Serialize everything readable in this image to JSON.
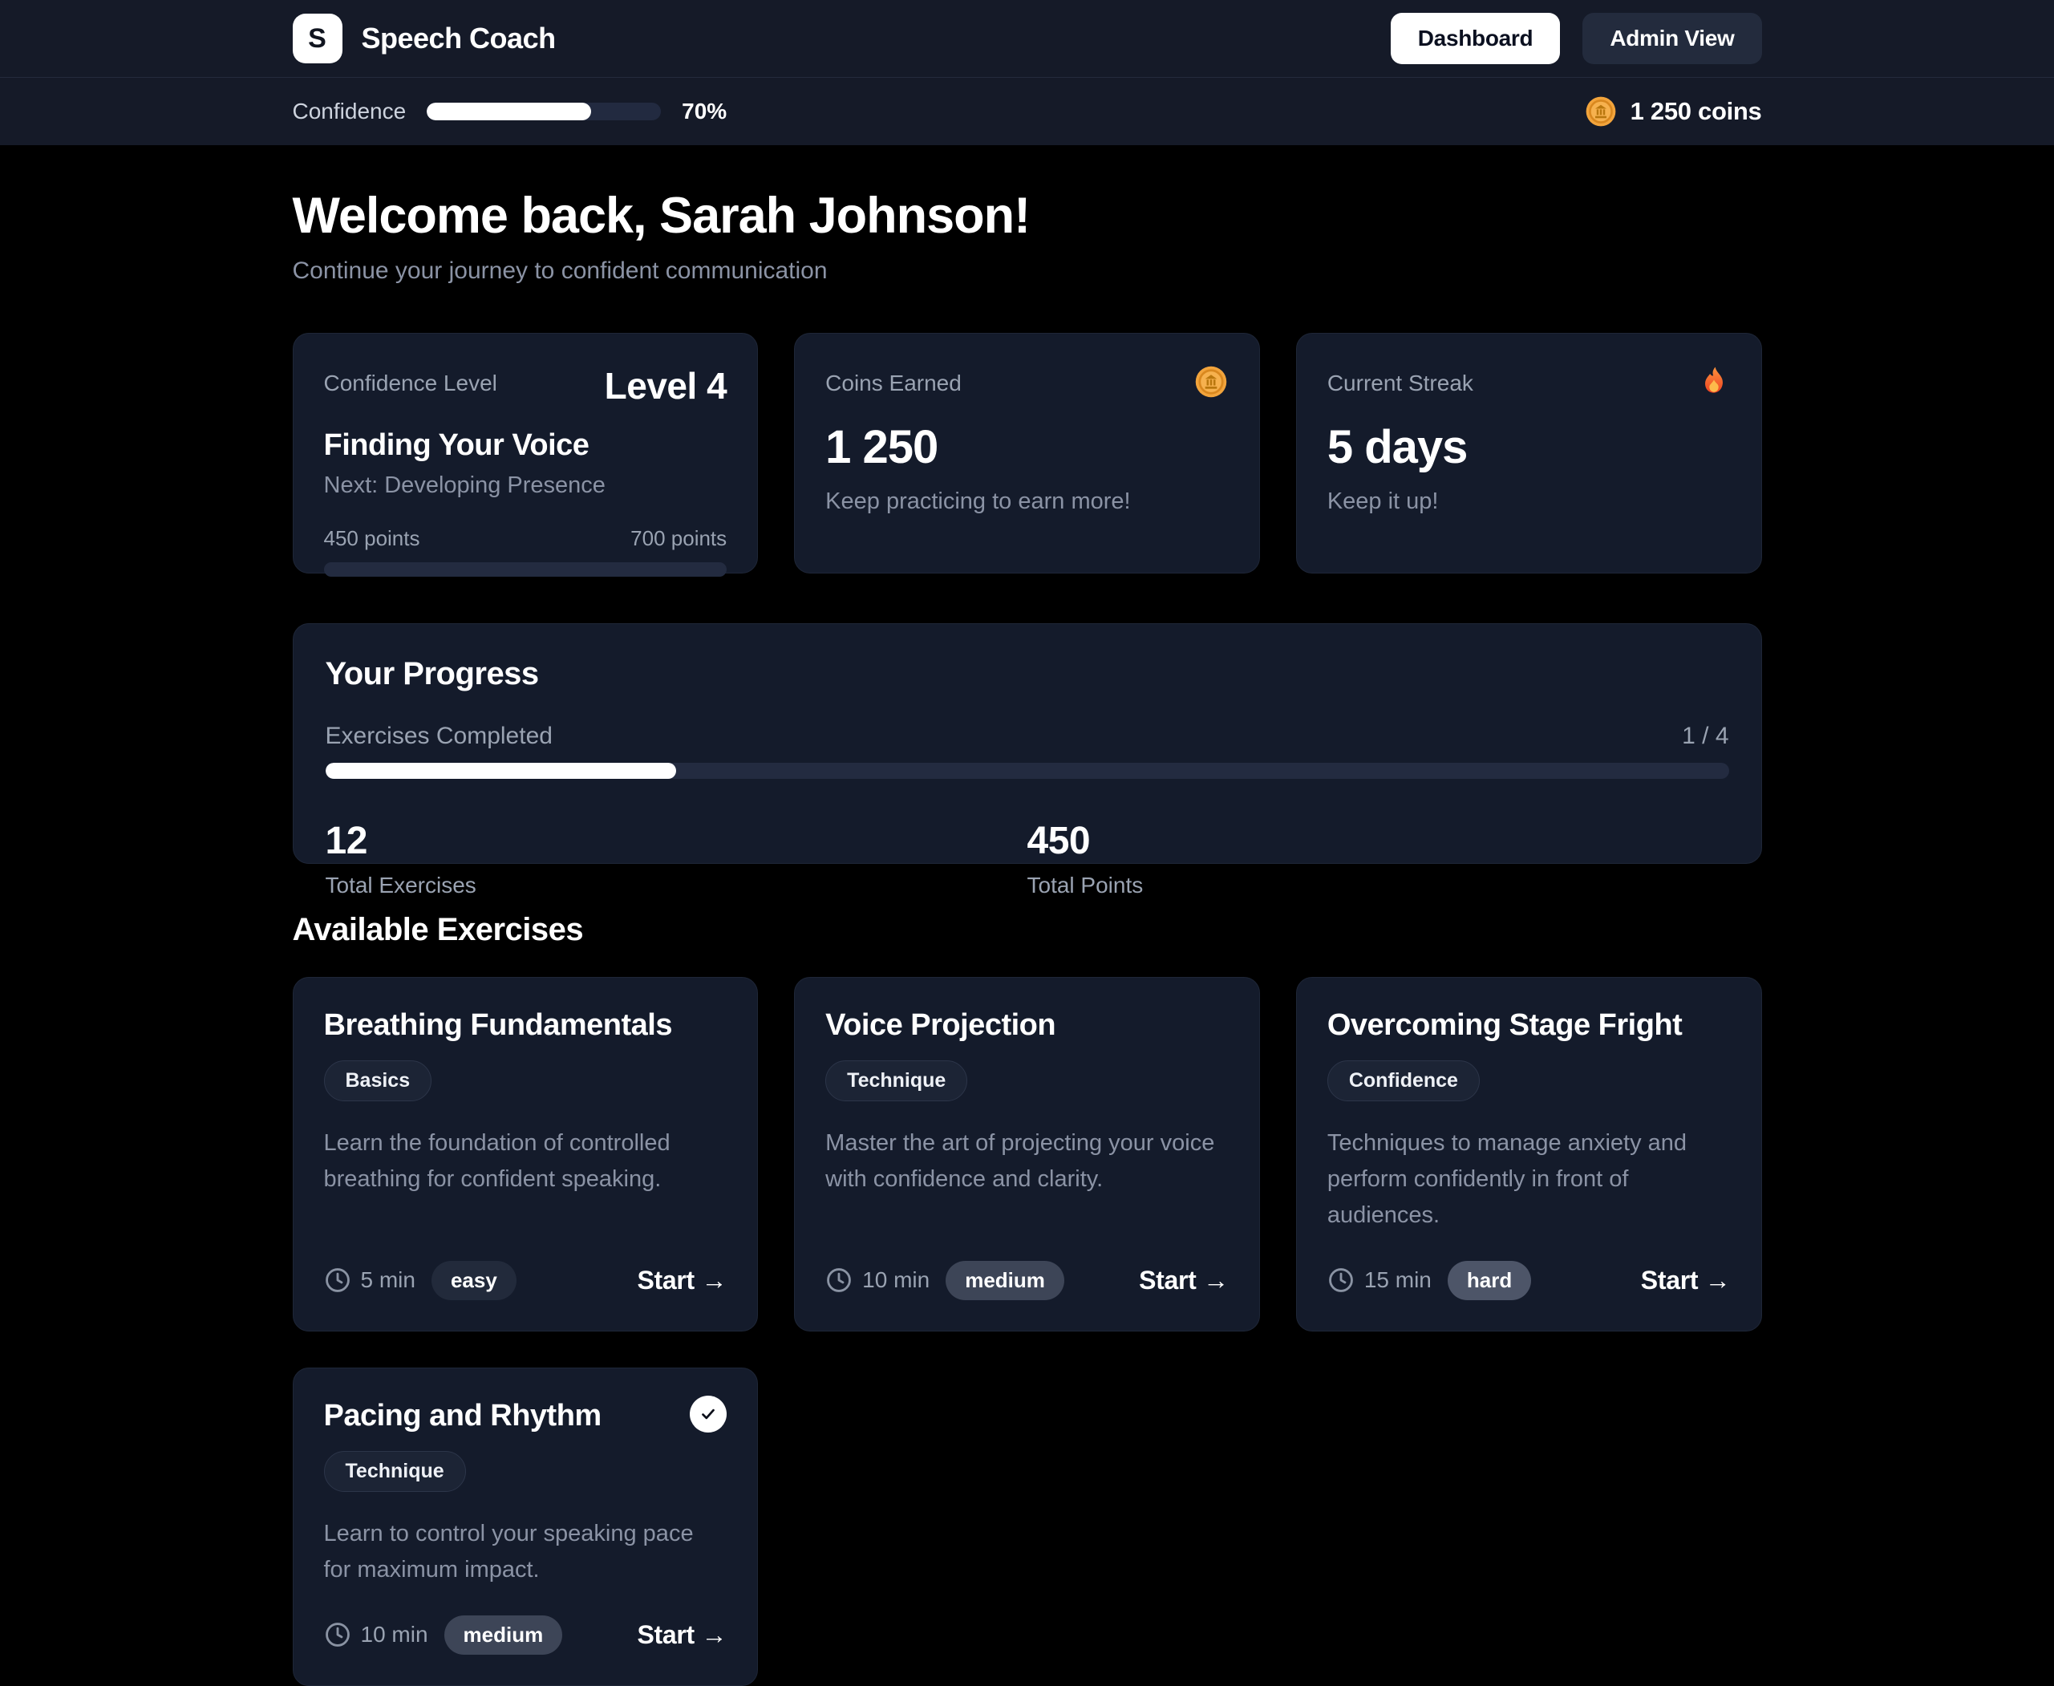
{
  "header": {
    "logo_letter": "S",
    "app_name": "Speech Coach",
    "nav": [
      {
        "label": "Dashboard",
        "active": true
      },
      {
        "label": "Admin View",
        "active": false
      }
    ]
  },
  "sub_header": {
    "confidence_label": "Confidence",
    "confidence_percent": 70,
    "confidence_percent_label": "70%",
    "coins_label": "1 250 coins"
  },
  "welcome": {
    "title": "Welcome back, Sarah Johnson!",
    "subtitle": "Continue your journey to confident communication"
  },
  "stats": {
    "level_card": {
      "label": "Confidence Level",
      "level": "Level 4",
      "name": "Finding Your Voice",
      "next": "Next: Developing Presence",
      "points_current": "450 points",
      "points_target": "700 points",
      "progress_percent": 0
    },
    "coins_card": {
      "label": "Coins Earned",
      "icon": "coin-icon",
      "value": "1 250",
      "caption": "Keep practicing to earn more!"
    },
    "streak_card": {
      "label": "Current Streak",
      "icon": "flame-icon",
      "value": "5 days",
      "caption": "Keep it up!"
    }
  },
  "progress": {
    "title": "Your Progress",
    "exercises_label": "Exercises Completed",
    "exercises_ratio": "1 / 4",
    "percent": 25,
    "totals": [
      {
        "value": "12",
        "label": "Total Exercises"
      },
      {
        "value": "450",
        "label": "Total Points"
      }
    ]
  },
  "exercises": {
    "heading": "Available Exercises",
    "start_label": "Start →",
    "items": [
      {
        "title": "Breathing Fundamentals",
        "category": "Basics",
        "description": "Learn the foundation of controlled breathing for confident speaking.",
        "duration": "5 min",
        "difficulty": "easy",
        "completed": false
      },
      {
        "title": "Voice Projection",
        "category": "Technique",
        "description": "Master the art of projecting your voice with confidence and clarity.",
        "duration": "10 min",
        "difficulty": "medium",
        "completed": false
      },
      {
        "title": "Overcoming Stage Fright",
        "category": "Confidence",
        "description": "Techniques to manage anxiety and perform confidently in front of audiences.",
        "duration": "15 min",
        "difficulty": "hard",
        "completed": false
      },
      {
        "title": "Pacing and Rhythm",
        "category": "Technique",
        "description": "Learn to control your speaking pace for maximum impact.",
        "duration": "10 min",
        "difficulty": "medium",
        "completed": true
      }
    ]
  },
  "theme": {
    "page_bg": "#000000",
    "panel_bg": "#151a28",
    "card_bg": "#141b2b",
    "text_muted": "#8b93a5",
    "progress_fill": "#ffffff",
    "coin_gold": "#f2a43c",
    "flame_orange": "#f5691d",
    "difficulty_colors": {
      "easy": "#222a3b",
      "medium": "#3d4557",
      "hard": "#4d5568"
    }
  }
}
